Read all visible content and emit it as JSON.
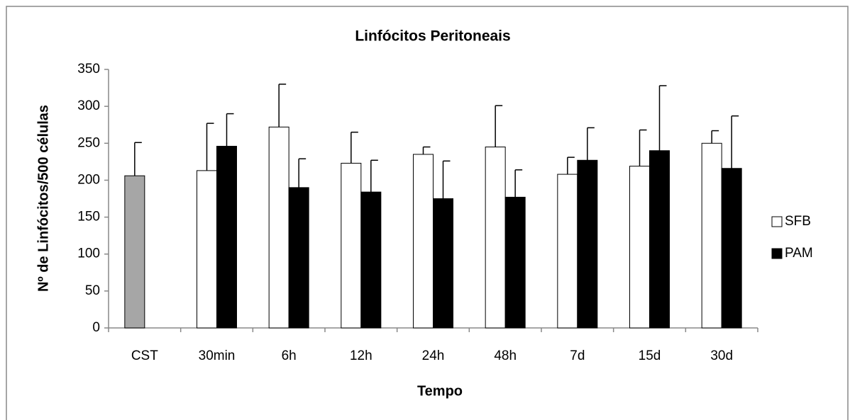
{
  "chart_data": {
    "type": "bar",
    "title": "Linfócitos Peritoneais",
    "x_label": "Tempo",
    "y_label": "Nº de Linfócitos/500 células",
    "categories": [
      "CST",
      "30min",
      "6h",
      "12h",
      "24h",
      "48h",
      "7d",
      "15d",
      "30d"
    ],
    "series": [
      {
        "name": "SFB",
        "color": "#ffffff",
        "point_colors": [
          "#a6a6a6",
          "#ffffff",
          "#ffffff",
          "#ffffff",
          "#ffffff",
          "#ffffff",
          "#ffffff",
          "#ffffff",
          "#ffffff"
        ],
        "values": [
          206,
          213,
          272,
          223,
          235,
          245,
          208,
          219,
          250
        ],
        "errors": [
          45,
          64,
          58,
          42,
          10,
          56,
          23,
          49,
          17
        ]
      },
      {
        "name": "PAM",
        "color": "#000000",
        "values": [
          null,
          246,
          190,
          184,
          175,
          177,
          227,
          240,
          216
        ],
        "errors": [
          null,
          44,
          39,
          43,
          51,
          37,
          44,
          88,
          71
        ]
      }
    ],
    "ylim": [
      0,
      350
    ],
    "yticks": [
      0,
      50,
      100,
      150,
      200,
      250,
      300,
      350
    ],
    "grid": false,
    "legend": "right"
  }
}
